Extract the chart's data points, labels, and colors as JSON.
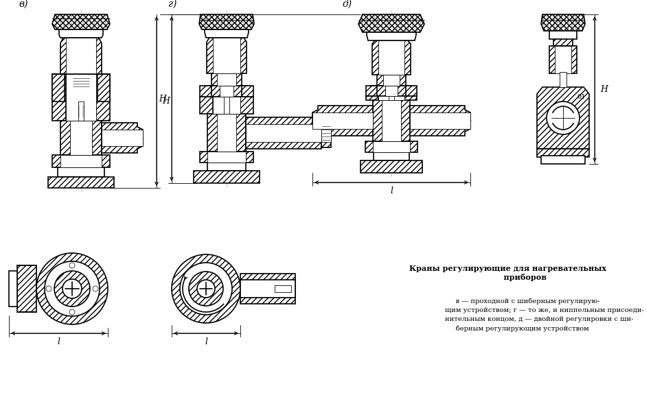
{
  "bg_color": "#ffffff",
  "title": "Краны регулирующие для нагревательных\n             приборов",
  "caption": "     в — проходной с шиберным регулирую-\nщим устройством; г — то же, и ниппельным присоеди-\nнительным концом, д — двойной регулировки с ши-\n     берным регулирующим устройством",
  "label_v": "в)",
  "label_g": "г)",
  "label_d": "д)",
  "dim_H": "H",
  "dim_L": "l",
  "dim_01": "01",
  "fig_width": 9.67,
  "fig_height": 5.76,
  "dpi": 100
}
